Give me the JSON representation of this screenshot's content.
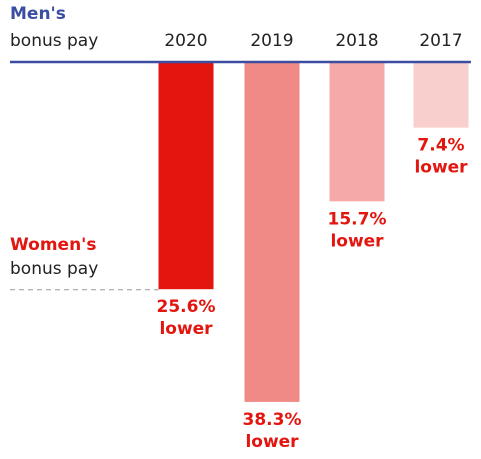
{
  "chart_data": {
    "type": "bar",
    "categories": [
      "2020",
      "2019",
      "2018",
      "2017"
    ],
    "values": [
      25.6,
      38.3,
      15.7,
      7.4
    ],
    "value_labels": [
      "25.6%",
      "38.3%",
      "15.7%",
      "7.4%"
    ],
    "value_note": "lower",
    "colors": [
      "#e2150f",
      "#f08a86",
      "#f5aaa8",
      "#f9cfce"
    ],
    "men_label": {
      "title": "Men's",
      "subtitle": "bonus pay"
    },
    "women_label": {
      "title": "Women's",
      "subtitle": "bonus pay"
    },
    "ylim": [
      0,
      40
    ]
  }
}
